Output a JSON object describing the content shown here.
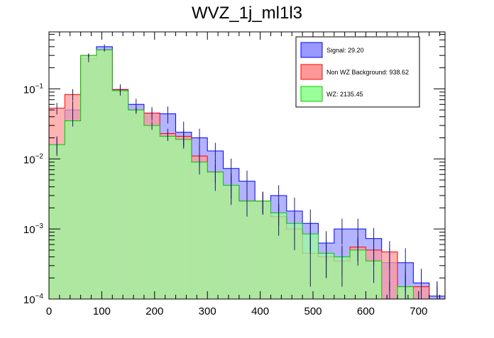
{
  "chart_data": {
    "type": "histogram",
    "title": "WVZ_1j_ml1l3",
    "xlabel": "",
    "ylabel": "",
    "y_scale": "log",
    "xlim": [
      0,
      750
    ],
    "ylim": [
      0.0001,
      0.65
    ],
    "bin_width": 30,
    "x_ticks": [
      0,
      100,
      200,
      300,
      400,
      500,
      600,
      700
    ],
    "y_tick_labels": [
      {
        "value": 0.1,
        "base": "10",
        "exp": "−1"
      },
      {
        "value": 0.01,
        "base": "10",
        "exp": "−2"
      },
      {
        "value": 0.001,
        "base": "10",
        "exp": "−3"
      },
      {
        "value": 0.0001,
        "base": "10",
        "exp": "−4"
      }
    ],
    "legend_position": "top-right",
    "series": [
      {
        "name": "Signal",
        "legend_label": "Signal: 29.20",
        "total": "29.20",
        "fill": "#9999ff",
        "line": "#0000ff",
        "values": [
          0.016,
          0.05,
          0.27,
          0.4,
          0.098,
          0.06,
          0.045,
          0.044,
          0.024,
          0.02,
          0.013,
          0.0073,
          0.0048,
          0.0025,
          0.003,
          0.0018,
          0.0012,
          0.00063,
          0.001,
          0.001,
          0.00073,
          0.00033,
          0.00033,
          0.00017,
          0.00011
        ],
        "errors": [
          0.005,
          0.016,
          0.03,
          0.03,
          0.018,
          0.012,
          0.01,
          0.012,
          0.01,
          0.007,
          0.004,
          0.0028,
          0.002,
          0.0009,
          0.0012,
          0.001,
          0.0007,
          0.0003,
          0.0004,
          0.0004,
          0.0003,
          0.0002,
          0.0002,
          0.0001,
          7e-05
        ]
      },
      {
        "name": "Non WZ Background",
        "legend_label": "Non WZ Background: 938.62",
        "total": "938.62",
        "fill": "#ff9999",
        "line": "#ff0000",
        "values": [
          0.053,
          0.083,
          0.3,
          0.36,
          0.097,
          0.05,
          0.045,
          0.023,
          0.021,
          0.011,
          0.0065,
          0.0042,
          0.0025,
          0.0025,
          0.0015,
          0.001,
          0.00045,
          0.0004,
          0.00035,
          0.00055,
          0.0005,
          0.00047,
          0.00015,
          0.00015,
          0.0001
        ],
        "errors": [
          0.01,
          0.016,
          0.02,
          0.02,
          0.01,
          0.006,
          0.006,
          0.004,
          0.005,
          0.004,
          0.003,
          0.002,
          0.001,
          0.0009,
          0.0007,
          0.0005,
          0.0003,
          0.0002,
          0.0002,
          0.0002,
          0.0002,
          0.0002,
          0.0001,
          0.0001,
          7e-05
        ]
      },
      {
        "name": "WZ",
        "legend_label": "WZ: 2135.45",
        "total": "2135.45",
        "fill": "#99ff99",
        "line": "#00cc00",
        "values": [
          0.016,
          0.035,
          0.3,
          0.36,
          0.094,
          0.05,
          0.03,
          0.021,
          0.019,
          0.009,
          0.0065,
          0.0042,
          0.0025,
          0.0025,
          0.0017,
          0.0012,
          0.00085,
          0.00045,
          0.0004,
          0.0005,
          0.00035,
          0.0001,
          0.00015,
          0.0001,
          0.0001
        ],
        "errors": [
          0.004,
          0.006,
          0.015,
          0.015,
          0.007,
          0.004,
          0.004,
          0.003,
          0.004,
          0.003,
          0.002,
          0.0015,
          0.0009,
          0.0008,
          0.0006,
          0.0005,
          0.0004,
          0.00025,
          0.00018,
          0.0002,
          0.00018,
          8e-05,
          8e-05,
          6e-05,
          5e-05
        ]
      }
    ]
  }
}
